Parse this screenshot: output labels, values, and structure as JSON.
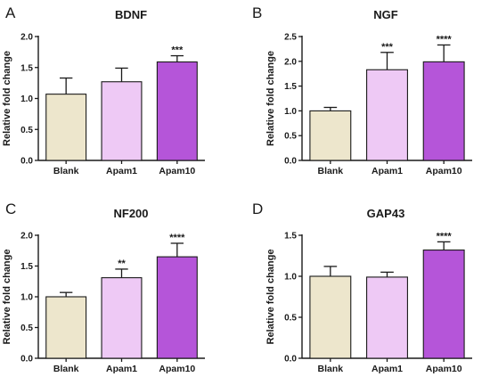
{
  "colors": {
    "bars": [
      "#ede6cc",
      "#eec9f5",
      "#b555d9"
    ],
    "stroke": "#1a1a1a"
  },
  "chart_data": [
    {
      "type": "bar",
      "panel": "A",
      "title": "BDNF",
      "ylabel": "Relative fold change",
      "categories": [
        "Blank",
        "Apam1",
        "Apam10"
      ],
      "values": [
        1.07,
        1.27,
        1.59
      ],
      "errors": [
        0.26,
        0.22,
        0.1
      ],
      "significance": [
        "",
        "",
        "***"
      ],
      "ylim": [
        0,
        2.0
      ],
      "yticks": [
        0,
        0.5,
        1.0,
        1.5,
        2.0
      ],
      "ytick_labels": [
        "0.0",
        "0.5",
        "1.0",
        "1.5",
        "2.0"
      ]
    },
    {
      "type": "bar",
      "panel": "B",
      "title": "NGF",
      "ylabel": "Relative fold change",
      "categories": [
        "Blank",
        "Apam1",
        "Apam10"
      ],
      "values": [
        1.0,
        1.83,
        1.99
      ],
      "errors": [
        0.07,
        0.35,
        0.34
      ],
      "significance": [
        "",
        "***",
        "****"
      ],
      "ylim": [
        0,
        2.5
      ],
      "yticks": [
        0,
        0.5,
        1.0,
        1.5,
        2.0,
        2.5
      ],
      "ytick_labels": [
        "0.0",
        "0.5",
        "1.0",
        "1.5",
        "2.0",
        "2.5"
      ]
    },
    {
      "type": "bar",
      "panel": "C",
      "title": "NF200",
      "ylabel": "Relative fold change",
      "categories": [
        "Blank",
        "Apam1",
        "Apam10"
      ],
      "values": [
        1.0,
        1.31,
        1.65
      ],
      "errors": [
        0.07,
        0.14,
        0.22
      ],
      "significance": [
        "",
        "**",
        "****"
      ],
      "ylim": [
        0,
        2.0
      ],
      "yticks": [
        0,
        0.5,
        1.0,
        1.5,
        2.0
      ],
      "ytick_labels": [
        "0.0",
        "0.5",
        "1.0",
        "1.5",
        "2.0"
      ]
    },
    {
      "type": "bar",
      "panel": "D",
      "title": "GAP43",
      "ylabel": "Relative fold change",
      "categories": [
        "Blank",
        "Apam1",
        "Apam10"
      ],
      "values": [
        1.0,
        0.99,
        1.32
      ],
      "errors": [
        0.12,
        0.06,
        0.1
      ],
      "significance": [
        "",
        "",
        "****"
      ],
      "ylim": [
        0,
        1.5
      ],
      "yticks": [
        0,
        0.5,
        1.0,
        1.5
      ],
      "ytick_labels": [
        "0.0",
        "0.5",
        "1.0",
        "1.5"
      ]
    }
  ]
}
